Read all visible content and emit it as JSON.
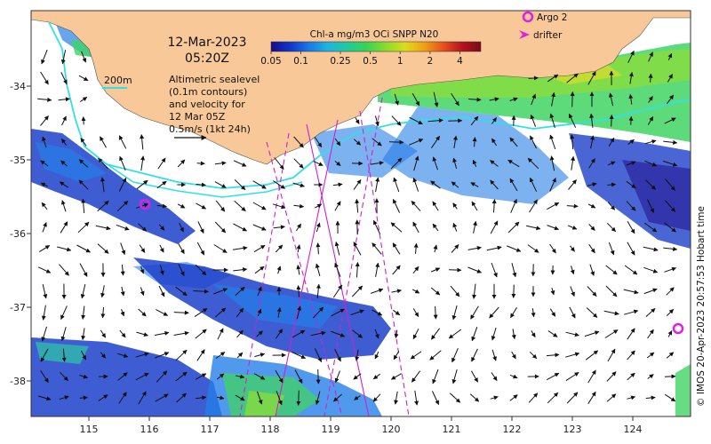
{
  "header": {
    "date": "12-Mar-2023",
    "time": "05:20Z"
  },
  "colorbar": {
    "title": "Chl-a mg/m3 OCi SNPP N20",
    "ticks": [
      "0.05",
      "0.1",
      "0.25",
      "0.5",
      "1",
      "2",
      "4"
    ],
    "colors": [
      "#1a0a8c",
      "#1036c8",
      "#1a78e6",
      "#1eb4e0",
      "#22c8a0",
      "#36d25a",
      "#8cdc2a",
      "#dcdc1e",
      "#f0a014",
      "#e6501e",
      "#b4141e",
      "#7a0a1a"
    ]
  },
  "legend": {
    "argo_label": "Argo 2",
    "drifter_label": "drifter",
    "contour_label": "200m",
    "altimetry_lines": [
      "Altimetric sealevel",
      "(0.1m contours)",
      "and velocity for",
      "12 Mar 05Z",
      "0.5m/s (1kt 24h)"
    ]
  },
  "credit": "© IMOS 20-Apr-2023 20:57:53 Hobart time",
  "axes": {
    "x_ticks": [
      "115",
      "116",
      "117",
      "118",
      "119",
      "120",
      "121",
      "122",
      "123",
      "124"
    ],
    "y_ticks": [
      "-34",
      "-35",
      "-36",
      "-37",
      "-38"
    ]
  },
  "colors": {
    "land": "#f8c898",
    "contour_200m": "#30e0e8",
    "argo": "#e020e0",
    "drifter": "#e020e0",
    "track": "#d020d0"
  },
  "icons": {
    "argo": "magenta-circle",
    "drifter": "magenta-arrowhead",
    "velocity": "black-arrow"
  }
}
